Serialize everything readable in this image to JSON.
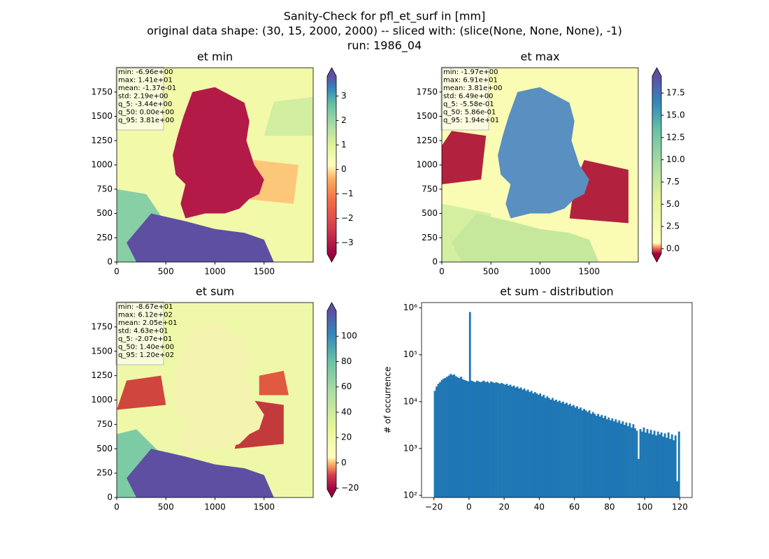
{
  "suptitle": [
    "Sanity-Check for pfl_et_surf in [mm]",
    "original data shape: (30, 15, 2000, 2000) -- sliced with: (slice(None, None, None), -1)",
    "run: 1986_04"
  ],
  "chart_data": [
    {
      "type": "heatmap",
      "title": "et min",
      "xlim": [
        0,
        2000
      ],
      "ylim": [
        0,
        2000
      ],
      "xticks": [
        0,
        500,
        1000,
        1500
      ],
      "yticks": [
        0,
        250,
        500,
        750,
        1000,
        1250,
        1500,
        1750
      ],
      "colorbar": {
        "lim": [
          -3.44,
          3.81
        ],
        "ticks": [
          {
            "value": -3,
            "label": "−3"
          },
          {
            "value": -2,
            "label": "−2"
          },
          {
            "value": -1,
            "label": "−1"
          },
          0,
          1,
          2,
          3
        ]
      },
      "stats": [
        "min: -6.96e+00",
        "max: 1.41e+01",
        "mean: -1.37e-01",
        "std: 2.19e+00",
        "q_5: -3.44e+00",
        "q_50: 0.00e+00",
        "q_95: 3.81e+00"
      ]
    },
    {
      "type": "heatmap",
      "title": "et max",
      "xlim": [
        0,
        2000
      ],
      "ylim": [
        0,
        2000
      ],
      "xticks": [
        0,
        500,
        1000,
        1500
      ],
      "yticks": [
        0,
        250,
        500,
        750,
        1000,
        1250,
        1500,
        1750
      ],
      "colorbar": {
        "lim": [
          -0.558,
          19.4
        ],
        "ticks": [
          {
            "value": 0,
            "label": "0.0"
          },
          2.5,
          {
            "value": 5,
            "label": "5.0"
          },
          7.5,
          {
            "value": 10,
            "label": "10.0"
          },
          12.5,
          {
            "value": 15,
            "label": "15.0"
          },
          17.5
        ]
      },
      "stats": [
        "min: -1.97e+00",
        "max: 6.91e+01",
        "mean: 3.81e+00",
        "std: 6.49e+00",
        "q_5: -5.58e-01",
        "q_50: 5.86e-01",
        "q_95: 1.94e+01"
      ]
    },
    {
      "type": "heatmap",
      "title": "et sum",
      "xlim": [
        0,
        2000
      ],
      "ylim": [
        0,
        2000
      ],
      "xticks": [
        0,
        500,
        1000,
        1500
      ],
      "yticks": [
        0,
        250,
        500,
        750,
        1000,
        1250,
        1500,
        1750
      ],
      "colorbar": {
        "lim": [
          -20.7,
          120
        ],
        "ticks": [
          {
            "value": -20,
            "label": "−20"
          },
          0,
          20,
          40,
          60,
          80,
          100
        ]
      },
      "stats": [
        "min: -8.67e+01",
        "max: 6.12e+02",
        "mean: 2.05e+01",
        "std: 4.63e+01",
        "q_5: -2.07e+01",
        "q_50: 1.40e+00",
        "q_95: 1.20e+02"
      ]
    },
    {
      "type": "histogram",
      "title": "et sum - distribution",
      "ylabel": "# of occurrence",
      "color": "#1f77b4",
      "log_y": true,
      "xlim": [
        -27,
        127
      ],
      "ylim": [
        90,
        1300000
      ],
      "xticks": [
        {
          "value": -20,
          "label": "−20"
        },
        0,
        20,
        40,
        60,
        80,
        100,
        120
      ],
      "yticks": [
        {
          "value": 100,
          "label": "10²"
        },
        {
          "value": 1000,
          "label": "10³"
        },
        {
          "value": 10000,
          "label": "10⁴"
        },
        {
          "value": 100000,
          "label": "10⁵"
        },
        {
          "value": 1000000,
          "label": "10⁶"
        }
      ],
      "bins": [
        -20,
        -19,
        -18,
        -17,
        -16,
        -15,
        -14,
        -13,
        -12,
        -11,
        -10,
        -9,
        -8,
        -7,
        -6,
        -5,
        -4,
        -3,
        -2,
        -1,
        0,
        1,
        2,
        3,
        4,
        5,
        6,
        7,
        8,
        9,
        10,
        11,
        12,
        13,
        14,
        15,
        16,
        17,
        18,
        19,
        20,
        21,
        22,
        23,
        24,
        25,
        26,
        27,
        28,
        29,
        30,
        31,
        32,
        33,
        34,
        35,
        36,
        37,
        38,
        39,
        40,
        41,
        42,
        43,
        44,
        45,
        46,
        47,
        48,
        49,
        50,
        51,
        52,
        53,
        54,
        55,
        56,
        57,
        58,
        59,
        60,
        61,
        62,
        63,
        64,
        65,
        66,
        67,
        68,
        69,
        70,
        71,
        72,
        73,
        74,
        75,
        76,
        77,
        78,
        79,
        80,
        81,
        82,
        83,
        84,
        85,
        86,
        87,
        88,
        89,
        90,
        91,
        92,
        93,
        94,
        95,
        96,
        97,
        98,
        99,
        100,
        101,
        102,
        103,
        104,
        105,
        106,
        107,
        108,
        109,
        110,
        111,
        112,
        113,
        114,
        115,
        116,
        117,
        118,
        119,
        120
      ],
      "values": [
        17000,
        21000,
        24000,
        26000,
        29000,
        31000,
        32000,
        34000,
        36000,
        39000,
        37000,
        38000,
        35000,
        33000,
        32000,
        34000,
        30000,
        29000,
        28000,
        27000,
        820000,
        28000,
        27000,
        26000,
        28000,
        27000,
        26000,
        27000,
        28000,
        26000,
        27000,
        25000,
        27000,
        26000,
        25000,
        26000,
        25000,
        24000,
        25000,
        24000,
        23000,
        24000,
        22000,
        23000,
        21000,
        22000,
        20000,
        21000,
        19000,
        20000,
        18000,
        19000,
        17000,
        18000,
        16000,
        17000,
        15000,
        16000,
        15000,
        14000,
        15000,
        13000,
        14000,
        12000,
        13000,
        12000,
        11000,
        12000,
        10500,
        11000,
        10000,
        10500,
        9500,
        10000,
        9000,
        9500,
        8500,
        9000,
        8000,
        8500,
        7500,
        8000,
        7000,
        7500,
        6500,
        7000,
        6500,
        6000,
        6500,
        5500,
        6000,
        5500,
        5000,
        5500,
        4800,
        5200,
        4500,
        5000,
        4200,
        4600,
        4000,
        4400,
        3800,
        4200,
        3600,
        4000,
        3400,
        3800,
        3200,
        3600,
        3000,
        3500,
        2800,
        3300,
        2700,
        2400,
        600,
        2600,
        2300,
        2800,
        2200,
        2600,
        2100,
        2500,
        2000,
        2400,
        1900,
        2300,
        2000,
        2200,
        1800,
        2100,
        1700,
        2200,
        1600,
        2000,
        1500,
        1900,
        200,
        2300
      ]
    }
  ]
}
